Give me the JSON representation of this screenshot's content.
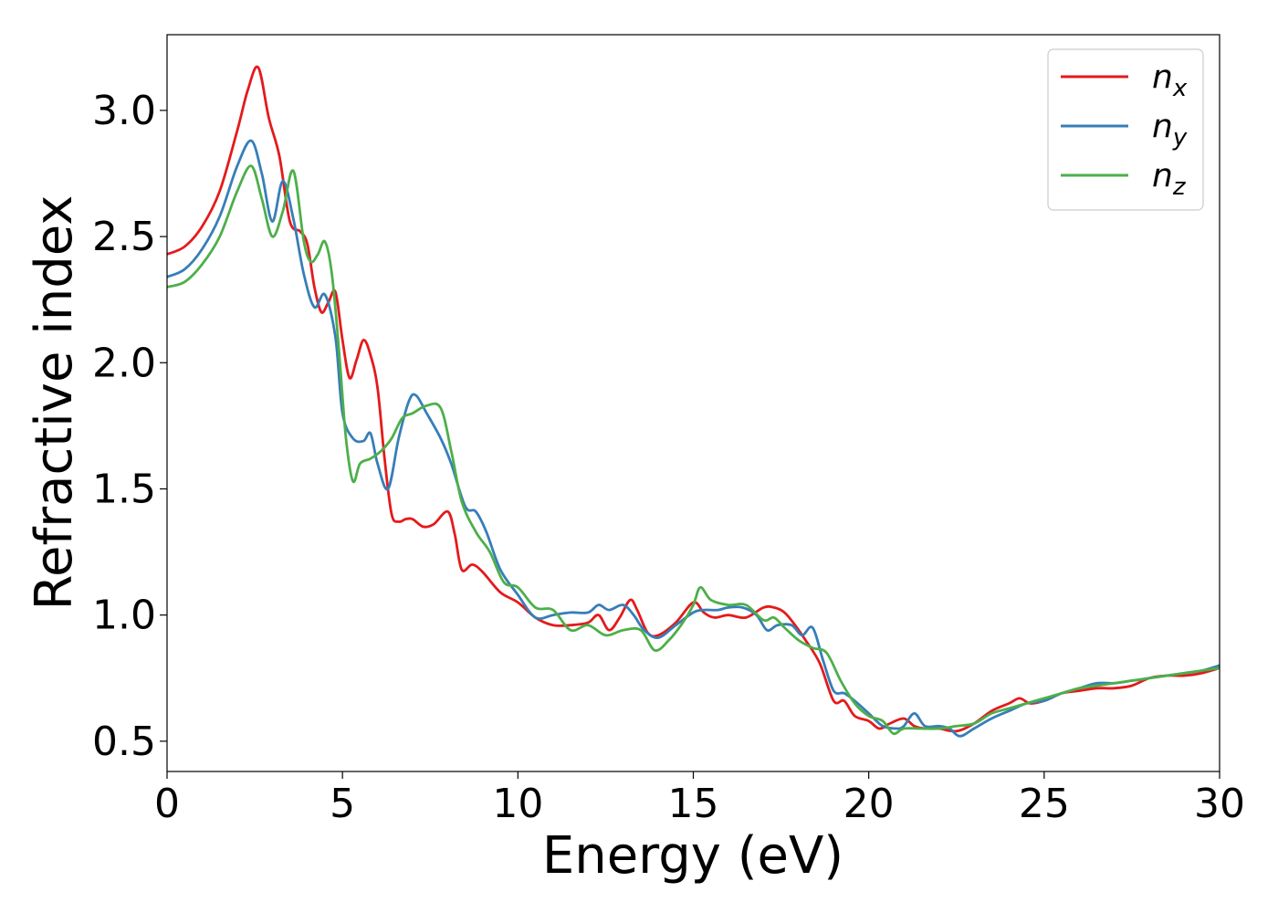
{
  "chart_data": {
    "type": "line",
    "title": "",
    "xlabel": "Energy (eV)",
    "ylabel": "Refractive index",
    "xlim": [
      0,
      30
    ],
    "ylim": [
      0.38,
      3.3
    ],
    "xticks": [
      0,
      5,
      10,
      15,
      20,
      25,
      30
    ],
    "xtick_labels": [
      "0",
      "5",
      "10",
      "15",
      "20",
      "25",
      "30"
    ],
    "yticks": [
      0.5,
      1.0,
      1.5,
      2.0,
      2.5,
      3.0
    ],
    "ytick_labels": [
      "0.5",
      "1.0",
      "1.5",
      "2.0",
      "2.5",
      "3.0"
    ],
    "grid": false,
    "legend_position": "top-right",
    "series": [
      {
        "name": "n",
        "subscript": "x",
        "color": "#e41a1c",
        "x": [
          0,
          0.5,
          1.0,
          1.5,
          2.0,
          2.3,
          2.6,
          2.9,
          3.2,
          3.5,
          3.8,
          4.0,
          4.2,
          4.4,
          4.6,
          4.8,
          5.0,
          5.2,
          5.4,
          5.6,
          5.8,
          6.0,
          6.2,
          6.4,
          6.6,
          6.8,
          7.0,
          7.3,
          7.6,
          8.0,
          8.2,
          8.4,
          8.7,
          9.0,
          9.5,
          10.0,
          10.5,
          11.0,
          11.5,
          12.0,
          12.3,
          12.6,
          12.9,
          13.2,
          13.4,
          13.7,
          14.0,
          14.5,
          15.0,
          15.3,
          15.6,
          16.0,
          16.5,
          17.0,
          17.3,
          17.6,
          17.9,
          18.2,
          18.6,
          19.0,
          19.3,
          19.6,
          20.0,
          20.3,
          20.6,
          21.0,
          21.3,
          21.6,
          22.0,
          22.5,
          23.0,
          23.5,
          24.0,
          24.3,
          24.6,
          25.0,
          25.5,
          26.0,
          26.5,
          27.0,
          27.5,
          28.0,
          28.5,
          29.0,
          29.5,
          30.0
        ],
        "y": [
          2.43,
          2.46,
          2.54,
          2.68,
          2.92,
          3.08,
          3.17,
          2.97,
          2.82,
          2.56,
          2.52,
          2.47,
          2.3,
          2.2,
          2.24,
          2.28,
          2.09,
          1.94,
          2.01,
          2.09,
          2.03,
          1.9,
          1.62,
          1.4,
          1.37,
          1.38,
          1.38,
          1.35,
          1.36,
          1.41,
          1.32,
          1.18,
          1.2,
          1.17,
          1.09,
          1.05,
          0.99,
          0.96,
          0.96,
          0.97,
          1.0,
          0.94,
          0.99,
          1.06,
          1.02,
          0.93,
          0.92,
          0.97,
          1.05,
          1.01,
          0.99,
          1.0,
          0.99,
          1.03,
          1.03,
          1.01,
          0.96,
          0.9,
          0.81,
          0.66,
          0.66,
          0.6,
          0.58,
          0.55,
          0.57,
          0.59,
          0.56,
          0.55,
          0.55,
          0.54,
          0.57,
          0.62,
          0.65,
          0.67,
          0.65,
          0.66,
          0.69,
          0.7,
          0.71,
          0.71,
          0.72,
          0.75,
          0.76,
          0.76,
          0.77,
          0.79
        ]
      },
      {
        "name": "n",
        "subscript": "y",
        "color": "#377eb8",
        "x": [
          0,
          0.5,
          1.0,
          1.5,
          2.0,
          2.4,
          2.7,
          3.0,
          3.3,
          3.6,
          3.9,
          4.2,
          4.5,
          4.8,
          5.0,
          5.3,
          5.6,
          5.8,
          6.0,
          6.3,
          6.6,
          6.9,
          7.1,
          7.4,
          7.8,
          8.1,
          8.5,
          8.8,
          9.1,
          9.5,
          10.0,
          10.5,
          11.0,
          11.5,
          12.0,
          12.3,
          12.6,
          13.0,
          13.3,
          13.6,
          14.0,
          14.5,
          15.0,
          15.3,
          15.7,
          16.0,
          16.4,
          16.8,
          17.1,
          17.4,
          17.8,
          18.1,
          18.4,
          18.7,
          19.0,
          19.3,
          19.6,
          20.0,
          20.4,
          20.8,
          21.0,
          21.3,
          21.6,
          22.0,
          22.3,
          22.6,
          23.0,
          23.5,
          24.0,
          24.5,
          25.0,
          25.5,
          26.0,
          26.5,
          27.0,
          27.5,
          28.0,
          28.5,
          29.0,
          29.5,
          30.0
        ],
        "y": [
          2.34,
          2.37,
          2.45,
          2.58,
          2.78,
          2.88,
          2.75,
          2.56,
          2.72,
          2.57,
          2.35,
          2.22,
          2.27,
          2.1,
          1.8,
          1.7,
          1.69,
          1.72,
          1.6,
          1.5,
          1.7,
          1.85,
          1.87,
          1.8,
          1.7,
          1.6,
          1.43,
          1.41,
          1.33,
          1.18,
          1.08,
          0.99,
          1.0,
          1.01,
          1.01,
          1.04,
          1.02,
          1.04,
          1.0,
          0.94,
          0.91,
          0.96,
          1.01,
          1.02,
          1.02,
          1.03,
          1.03,
          1.0,
          0.94,
          0.96,
          0.96,
          0.92,
          0.95,
          0.82,
          0.7,
          0.69,
          0.66,
          0.61,
          0.56,
          0.55,
          0.56,
          0.61,
          0.56,
          0.56,
          0.55,
          0.52,
          0.55,
          0.59,
          0.62,
          0.65,
          0.66,
          0.69,
          0.71,
          0.73,
          0.73,
          0.74,
          0.75,
          0.76,
          0.77,
          0.78,
          0.8
        ]
      },
      {
        "name": "n",
        "subscript": "z",
        "color": "#4daf4a",
        "x": [
          0,
          0.5,
          1.0,
          1.5,
          2.0,
          2.4,
          2.7,
          3.0,
          3.3,
          3.6,
          3.9,
          4.1,
          4.3,
          4.5,
          4.7,
          4.9,
          5.1,
          5.3,
          5.5,
          5.8,
          6.1,
          6.4,
          6.7,
          7.0,
          7.4,
          7.8,
          8.1,
          8.4,
          8.8,
          9.2,
          9.6,
          10.0,
          10.5,
          11.0,
          11.5,
          12.0,
          12.5,
          13.0,
          13.5,
          13.9,
          14.3,
          14.7,
          15.0,
          15.2,
          15.5,
          16.0,
          16.5,
          17.0,
          17.3,
          17.6,
          18.0,
          18.4,
          18.8,
          19.2,
          19.6,
          20.0,
          20.4,
          20.7,
          21.0,
          21.5,
          22.0,
          22.5,
          23.0,
          23.5,
          24.0,
          24.5,
          25.0,
          25.5,
          26.0,
          26.5,
          27.0,
          27.5,
          28.0,
          28.5,
          29.0,
          29.5,
          30.0
        ],
        "y": [
          2.3,
          2.32,
          2.39,
          2.5,
          2.68,
          2.78,
          2.65,
          2.5,
          2.6,
          2.76,
          2.48,
          2.4,
          2.43,
          2.48,
          2.35,
          2.05,
          1.7,
          1.53,
          1.6,
          1.62,
          1.65,
          1.7,
          1.78,
          1.8,
          1.83,
          1.82,
          1.65,
          1.45,
          1.33,
          1.25,
          1.13,
          1.11,
          1.03,
          1.02,
          0.94,
          0.96,
          0.92,
          0.94,
          0.94,
          0.86,
          0.9,
          0.97,
          1.04,
          1.11,
          1.06,
          1.04,
          1.04,
          0.98,
          0.99,
          0.95,
          0.9,
          0.87,
          0.85,
          0.74,
          0.65,
          0.6,
          0.58,
          0.53,
          0.55,
          0.55,
          0.55,
          0.56,
          0.57,
          0.61,
          0.63,
          0.65,
          0.67,
          0.69,
          0.71,
          0.72,
          0.73,
          0.74,
          0.75,
          0.76,
          0.77,
          0.78,
          0.79
        ]
      }
    ]
  }
}
